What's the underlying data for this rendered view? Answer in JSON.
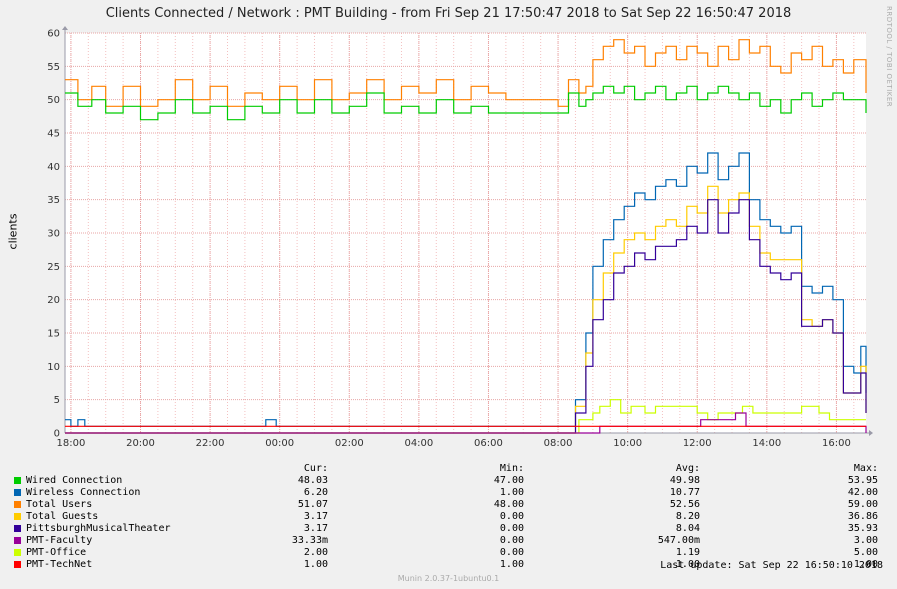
{
  "title": "Clients Connected / Network : PMT Building - from Fri Sep 21 17:50:47 2018 to Sat Sep 22 16:50:47 2018",
  "side_credit": "RRDTOOL / TOBI OETIKER",
  "footer": {
    "last_update": "Last update: Sat Sep 22 16:50:10 2018",
    "version": "Munin 2.0.37-1ubuntu0.1"
  },
  "legend_headers": {
    "cur": "Cur:",
    "min": "Min:",
    "avg": "Avg:",
    "max": "Max:"
  },
  "legend": [
    {
      "name": "Wired Connection",
      "color": "#00cc00",
      "cur": "48.03",
      "min": "47.00",
      "avg": "49.98",
      "max": "53.95"
    },
    {
      "name": "Wireless Connection",
      "color": "#0066b3",
      "cur": "6.20",
      "min": "1.00",
      "avg": "10.77",
      "max": "42.00"
    },
    {
      "name": "Total Users",
      "color": "#ff8000",
      "cur": "51.07",
      "min": "48.00",
      "avg": "52.56",
      "max": "59.00"
    },
    {
      "name": "Total Guests",
      "color": "#ffcc00",
      "cur": "3.17",
      "min": "0.00",
      "avg": "8.20",
      "max": "36.86"
    },
    {
      "name": "PittsburghMusicalTheater",
      "color": "#330099",
      "cur": "3.17",
      "min": "0.00",
      "avg": "8.04",
      "max": "35.93"
    },
    {
      "name": "PMT-Faculty",
      "color": "#990099",
      "cur": "33.33m",
      "min": "0.00",
      "avg": "547.00m",
      "max": "3.00"
    },
    {
      "name": "PMT-Office",
      "color": "#ccff00",
      "cur": "2.00",
      "min": "0.00",
      "avg": "1.19",
      "max": "5.00"
    },
    {
      "name": "PMT-TechNet",
      "color": "#ff0000",
      "cur": "1.00",
      "min": "1.00",
      "avg": "1.00",
      "max": "1.00"
    }
  ],
  "chart_data": {
    "type": "line",
    "ylabel": "clients",
    "ylim": [
      0,
      60
    ],
    "yticks": [
      0,
      5,
      10,
      15,
      20,
      25,
      30,
      35,
      40,
      45,
      50,
      55,
      60
    ],
    "xlim": [
      17.83,
      40.85
    ],
    "xticks": [
      {
        "v": 18,
        "label": "18:00"
      },
      {
        "v": 20,
        "label": "20:00"
      },
      {
        "v": 22,
        "label": "22:00"
      },
      {
        "v": 24,
        "label": "00:00"
      },
      {
        "v": 26,
        "label": "02:00"
      },
      {
        "v": 28,
        "label": "04:00"
      },
      {
        "v": 30,
        "label": "06:00"
      },
      {
        "v": 32,
        "label": "08:00"
      },
      {
        "v": 34,
        "label": "10:00"
      },
      {
        "v": 36,
        "label": "12:00"
      },
      {
        "v": 38,
        "label": "14:00"
      },
      {
        "v": 40,
        "label": "16:00"
      }
    ],
    "grid": true,
    "x_unit_note": "hours since Sep 21 00:00",
    "series": [
      {
        "name": "Total Users",
        "color": "#ff8000",
        "points": [
          [
            17.83,
            53
          ],
          [
            18.2,
            50
          ],
          [
            18.6,
            52
          ],
          [
            19.0,
            49
          ],
          [
            19.5,
            52
          ],
          [
            20.0,
            49
          ],
          [
            20.5,
            50
          ],
          [
            21.0,
            53
          ],
          [
            21.5,
            50
          ],
          [
            22.0,
            52
          ],
          [
            22.5,
            49
          ],
          [
            23.0,
            51
          ],
          [
            23.5,
            50
          ],
          [
            24.0,
            52
          ],
          [
            24.5,
            50
          ],
          [
            25.0,
            53
          ],
          [
            25.5,
            50
          ],
          [
            26.0,
            51
          ],
          [
            26.5,
            53
          ],
          [
            27.0,
            50
          ],
          [
            27.5,
            52
          ],
          [
            28.0,
            51
          ],
          [
            28.5,
            53
          ],
          [
            29.0,
            50
          ],
          [
            29.5,
            52
          ],
          [
            30.0,
            51
          ],
          [
            30.5,
            50
          ],
          [
            31.0,
            50
          ],
          [
            31.5,
            50
          ],
          [
            32.0,
            49
          ],
          [
            32.3,
            53
          ],
          [
            32.6,
            51
          ],
          [
            32.8,
            52
          ],
          [
            33.0,
            56
          ],
          [
            33.3,
            58
          ],
          [
            33.6,
            59
          ],
          [
            33.9,
            57
          ],
          [
            34.2,
            58
          ],
          [
            34.5,
            55
          ],
          [
            34.8,
            57
          ],
          [
            35.1,
            58
          ],
          [
            35.4,
            56
          ],
          [
            35.7,
            58
          ],
          [
            36.0,
            57
          ],
          [
            36.3,
            55
          ],
          [
            36.6,
            58
          ],
          [
            36.9,
            56
          ],
          [
            37.2,
            59
          ],
          [
            37.5,
            57
          ],
          [
            37.8,
            58
          ],
          [
            38.1,
            55
          ],
          [
            38.4,
            54
          ],
          [
            38.7,
            57
          ],
          [
            39.0,
            56
          ],
          [
            39.3,
            58
          ],
          [
            39.6,
            55
          ],
          [
            39.9,
            56
          ],
          [
            40.2,
            54
          ],
          [
            40.5,
            56
          ],
          [
            40.85,
            51
          ]
        ]
      },
      {
        "name": "Wired Connection",
        "color": "#00cc00",
        "points": [
          [
            17.83,
            51
          ],
          [
            18.2,
            49
          ],
          [
            18.6,
            50
          ],
          [
            19.0,
            48
          ],
          [
            19.5,
            49
          ],
          [
            20.0,
            47
          ],
          [
            20.5,
            48
          ],
          [
            21.0,
            50
          ],
          [
            21.5,
            48
          ],
          [
            22.0,
            49
          ],
          [
            22.5,
            47
          ],
          [
            23.0,
            49
          ],
          [
            23.5,
            48
          ],
          [
            24.0,
            50
          ],
          [
            24.5,
            48
          ],
          [
            25.0,
            50
          ],
          [
            25.5,
            48
          ],
          [
            26.0,
            49
          ],
          [
            26.5,
            51
          ],
          [
            27.0,
            48
          ],
          [
            27.5,
            49
          ],
          [
            28.0,
            48
          ],
          [
            28.5,
            50
          ],
          [
            29.0,
            48
          ],
          [
            29.5,
            49
          ],
          [
            30.0,
            48
          ],
          [
            30.5,
            48
          ],
          [
            31.0,
            48
          ],
          [
            31.5,
            48
          ],
          [
            32.0,
            48
          ],
          [
            32.3,
            51
          ],
          [
            32.6,
            49
          ],
          [
            32.8,
            50
          ],
          [
            33.0,
            51
          ],
          [
            33.3,
            52
          ],
          [
            33.6,
            51
          ],
          [
            33.9,
            52
          ],
          [
            34.2,
            50
          ],
          [
            34.5,
            51
          ],
          [
            34.8,
            52
          ],
          [
            35.1,
            50
          ],
          [
            35.4,
            51
          ],
          [
            35.7,
            52
          ],
          [
            36.0,
            50
          ],
          [
            36.3,
            51
          ],
          [
            36.6,
            52
          ],
          [
            36.9,
            51
          ],
          [
            37.2,
            50
          ],
          [
            37.5,
            51
          ],
          [
            37.8,
            49
          ],
          [
            38.1,
            50
          ],
          [
            38.4,
            48
          ],
          [
            38.7,
            50
          ],
          [
            39.0,
            51
          ],
          [
            39.3,
            49
          ],
          [
            39.6,
            50
          ],
          [
            39.9,
            51
          ],
          [
            40.2,
            50
          ],
          [
            40.5,
            50
          ],
          [
            40.85,
            48
          ]
        ]
      },
      {
        "name": "Wireless Connection",
        "color": "#0066b3",
        "points": [
          [
            17.83,
            2
          ],
          [
            18.0,
            1
          ],
          [
            18.2,
            2
          ],
          [
            18.4,
            1
          ],
          [
            23.0,
            1
          ],
          [
            23.6,
            2
          ],
          [
            23.9,
            1
          ],
          [
            32.0,
            1
          ],
          [
            32.5,
            5
          ],
          [
            32.8,
            15
          ],
          [
            33.0,
            25
          ],
          [
            33.3,
            29
          ],
          [
            33.6,
            32
          ],
          [
            33.9,
            34
          ],
          [
            34.2,
            36
          ],
          [
            34.5,
            35
          ],
          [
            34.8,
            37
          ],
          [
            35.1,
            38
          ],
          [
            35.4,
            37
          ],
          [
            35.7,
            40
          ],
          [
            36.0,
            39
          ],
          [
            36.3,
            42
          ],
          [
            36.6,
            38
          ],
          [
            36.9,
            40
          ],
          [
            37.2,
            42
          ],
          [
            37.5,
            35
          ],
          [
            37.8,
            32
          ],
          [
            38.1,
            31
          ],
          [
            38.4,
            30
          ],
          [
            38.7,
            31
          ],
          [
            39.0,
            22
          ],
          [
            39.3,
            21
          ],
          [
            39.6,
            22
          ],
          [
            39.9,
            20
          ],
          [
            40.2,
            10
          ],
          [
            40.5,
            9
          ],
          [
            40.7,
            13
          ],
          [
            40.85,
            6
          ]
        ]
      },
      {
        "name": "Total Guests",
        "color": "#ffcc00",
        "points": [
          [
            17.83,
            0
          ],
          [
            32.2,
            0
          ],
          [
            32.5,
            4
          ],
          [
            32.8,
            12
          ],
          [
            33.0,
            20
          ],
          [
            33.3,
            24
          ],
          [
            33.6,
            27
          ],
          [
            33.9,
            29
          ],
          [
            34.2,
            30
          ],
          [
            34.5,
            29
          ],
          [
            34.8,
            31
          ],
          [
            35.1,
            32
          ],
          [
            35.4,
            31
          ],
          [
            35.7,
            34
          ],
          [
            36.0,
            33
          ],
          [
            36.3,
            37
          ],
          [
            36.6,
            33
          ],
          [
            36.9,
            35
          ],
          [
            37.2,
            36
          ],
          [
            37.5,
            31
          ],
          [
            37.8,
            27
          ],
          [
            38.1,
            26
          ],
          [
            38.4,
            26
          ],
          [
            38.7,
            26
          ],
          [
            39.0,
            17
          ],
          [
            39.3,
            16
          ],
          [
            39.6,
            17
          ],
          [
            39.9,
            15
          ],
          [
            40.2,
            6
          ],
          [
            40.5,
            6
          ],
          [
            40.7,
            10
          ],
          [
            40.85,
            3
          ]
        ]
      },
      {
        "name": "PittsburghMusicalTheater",
        "color": "#330099",
        "points": [
          [
            17.83,
            0
          ],
          [
            32.2,
            0
          ],
          [
            32.5,
            3
          ],
          [
            32.8,
            10
          ],
          [
            33.0,
            17
          ],
          [
            33.3,
            20
          ],
          [
            33.6,
            24
          ],
          [
            33.9,
            25
          ],
          [
            34.2,
            27
          ],
          [
            34.5,
            26
          ],
          [
            34.8,
            28
          ],
          [
            35.1,
            28
          ],
          [
            35.4,
            29
          ],
          [
            35.7,
            31
          ],
          [
            36.0,
            30
          ],
          [
            36.3,
            35
          ],
          [
            36.6,
            30
          ],
          [
            36.9,
            33
          ],
          [
            37.2,
            35
          ],
          [
            37.5,
            29
          ],
          [
            37.8,
            25
          ],
          [
            38.1,
            24
          ],
          [
            38.4,
            23
          ],
          [
            38.7,
            24
          ],
          [
            39.0,
            16
          ],
          [
            39.3,
            16
          ],
          [
            39.6,
            17
          ],
          [
            39.9,
            15
          ],
          [
            40.2,
            6
          ],
          [
            40.5,
            6
          ],
          [
            40.7,
            9
          ],
          [
            40.85,
            3
          ]
        ]
      },
      {
        "name": "PMT-Office",
        "color": "#ccff00",
        "points": [
          [
            17.83,
            0
          ],
          [
            32.4,
            0
          ],
          [
            32.6,
            2
          ],
          [
            33.0,
            3
          ],
          [
            33.2,
            4
          ],
          [
            33.5,
            5
          ],
          [
            33.8,
            3
          ],
          [
            34.1,
            4
          ],
          [
            34.5,
            3
          ],
          [
            34.8,
            4
          ],
          [
            35.5,
            4
          ],
          [
            36.0,
            3
          ],
          [
            36.3,
            2
          ],
          [
            36.6,
            3
          ],
          [
            37.0,
            3
          ],
          [
            37.3,
            4
          ],
          [
            37.6,
            3
          ],
          [
            38.0,
            3
          ],
          [
            38.5,
            3
          ],
          [
            39.0,
            4
          ],
          [
            39.5,
            3
          ],
          [
            39.8,
            2
          ],
          [
            40.2,
            2
          ],
          [
            40.5,
            2
          ],
          [
            40.85,
            2
          ]
        ]
      },
      {
        "name": "PMT-Faculty",
        "color": "#990099",
        "points": [
          [
            17.83,
            0
          ],
          [
            33.0,
            0
          ],
          [
            33.2,
            1
          ],
          [
            34.0,
            1
          ],
          [
            35.0,
            1
          ],
          [
            35.5,
            1
          ],
          [
            35.9,
            1
          ],
          [
            36.1,
            2
          ],
          [
            36.8,
            2
          ],
          [
            37.1,
            3
          ],
          [
            37.4,
            1
          ],
          [
            38.0,
            1
          ],
          [
            39.0,
            1
          ],
          [
            39.8,
            1
          ],
          [
            40.2,
            1
          ],
          [
            40.85,
            0
          ]
        ]
      },
      {
        "name": "PMT-TechNet",
        "color": "#ff0000",
        "points": [
          [
            17.83,
            1
          ],
          [
            40.85,
            1
          ]
        ]
      }
    ]
  }
}
